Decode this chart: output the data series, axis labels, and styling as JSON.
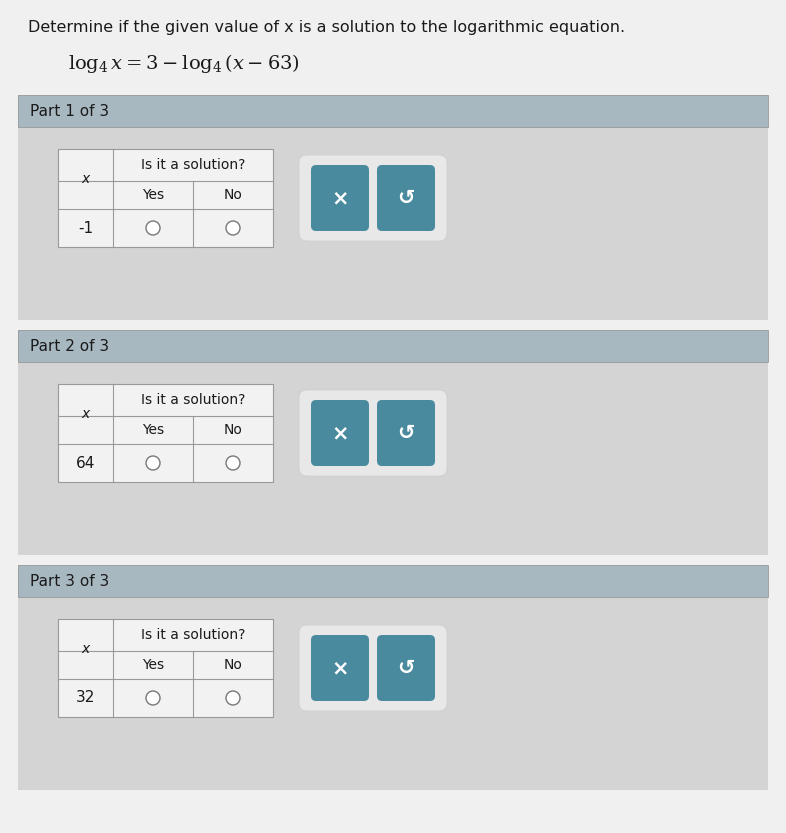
{
  "title_text": "Determine if the given value of x is a solution to the logarithmic equation.",
  "parts": [
    {
      "label": "Part 1 of 3",
      "x_val": "-1"
    },
    {
      "label": "Part 2 of 3",
      "x_val": "64"
    },
    {
      "label": "Part 3 of 3",
      "x_val": "32"
    }
  ],
  "bg_page": "#e0e0e0",
  "bg_section": "#d4d4d4",
  "bg_part_header": "#a8b8c0",
  "bg_table": "#f2f2f2",
  "bg_table_row": "#fafafa",
  "btn_color": "#4a8a9f",
  "btn_border_color": "#f0f0f0",
  "btn_text_color": "#ffffff",
  "text_dark": "#1a1a1a",
  "border_color": "#999999",
  "title_fontsize": 11.5,
  "equation_fontsize": 13.5,
  "part_fontsize": 11,
  "table_fontsize": 10.5,
  "page_bg": "#f0f0f0"
}
